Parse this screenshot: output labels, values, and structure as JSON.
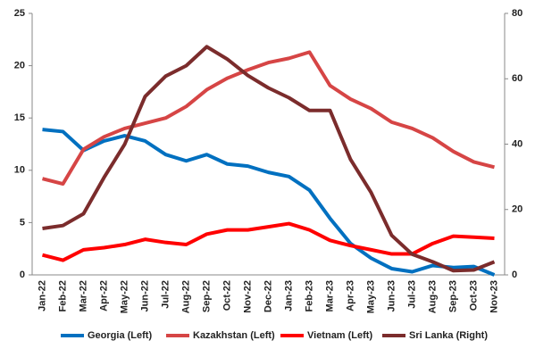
{
  "chart_data": {
    "type": "line",
    "categories": [
      "Jan-22",
      "Feb-22",
      "Mar-22",
      "Apr-22",
      "May-22",
      "Jun-22",
      "Jul-22",
      "Aug-22",
      "Sep-22",
      "Oct-22",
      "Nov-22",
      "Dec-22",
      "Jan-23",
      "Feb-23",
      "Mar-23",
      "Apr-23",
      "May-23",
      "Jun-23",
      "Jul-23",
      "Aug-23",
      "Sep-23",
      "Oct-23",
      "Nov-23"
    ],
    "series": [
      {
        "name": "Georgia (Left)",
        "color": "#0070c0",
        "values": [
          13.9,
          13.7,
          11.9,
          12.8,
          13.3,
          12.8,
          11.5,
          10.9,
          11.5,
          10.6,
          10.4,
          9.8,
          9.4,
          8.1,
          5.4,
          3.0,
          1.6,
          0.6,
          0.3,
          0.9,
          0.7,
          0.8,
          0.0
        ]
      },
      {
        "name": "Kazakhstan (Left)",
        "color": "#d64545",
        "values": [
          9.2,
          8.7,
          12.0,
          13.2,
          14.0,
          14.5,
          15.0,
          16.1,
          17.7,
          18.8,
          19.6,
          20.3,
          20.7,
          21.3,
          18.1,
          16.8,
          15.9,
          14.6,
          14.0,
          13.1,
          11.8,
          10.8,
          10.3
        ]
      },
      {
        "name": "Vietnam (Left)",
        "color": "#ff0000",
        "values": [
          1.9,
          1.4,
          2.4,
          2.6,
          2.9,
          3.4,
          3.1,
          2.9,
          3.9,
          4.3,
          4.3,
          4.6,
          4.9,
          4.3,
          3.3,
          2.8,
          2.4,
          2.0,
          2.0,
          3.0,
          3.7,
          3.6,
          3.5
        ]
      },
      {
        "name": "Sri Lanka (Right)",
        "color": "#7b2c2c",
        "axis": "y2",
        "values": [
          14.2,
          15.1,
          18.7,
          29.8,
          39.9,
          54.6,
          60.8,
          64.0,
          69.8,
          66.0,
          61.0,
          57.2,
          54.2,
          50.3,
          50.3,
          35.3,
          25.2,
          12.1,
          6.3,
          4.0,
          1.3,
          1.5,
          4.0
        ]
      }
    ],
    "ylim": [
      0,
      25
    ],
    "yticks": [
      0,
      5,
      10,
      15,
      20,
      25
    ],
    "y2lim": [
      0,
      80
    ],
    "y2ticks": [
      0,
      20,
      40,
      60,
      80
    ],
    "grid": false,
    "legend": "bottom"
  }
}
